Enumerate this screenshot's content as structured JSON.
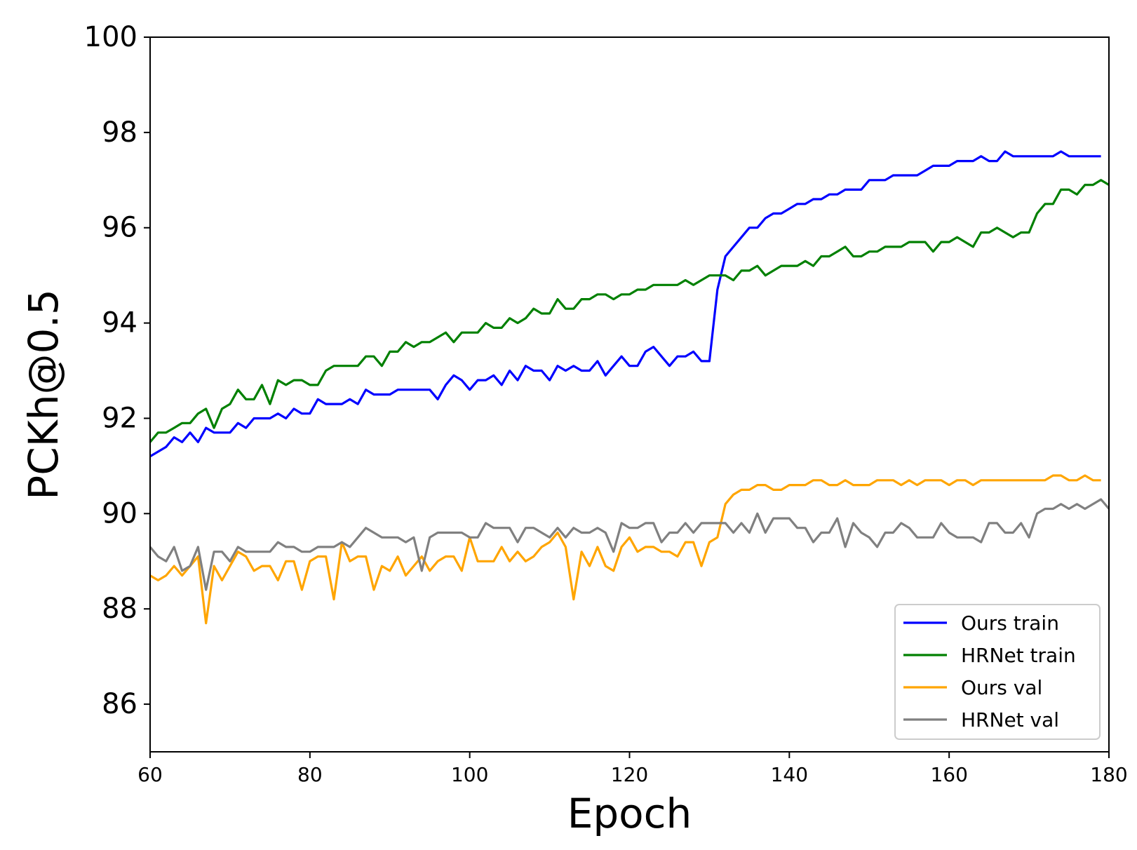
{
  "chart_data": {
    "type": "line",
    "xlabel": "Epoch",
    "ylabel": "PCKh@0.5",
    "xlim": [
      60,
      180
    ],
    "ylim": [
      85,
      100
    ],
    "xticks": [
      60,
      80,
      100,
      120,
      140,
      160,
      180
    ],
    "yticks": [
      86,
      88,
      90,
      92,
      94,
      96,
      98,
      100
    ],
    "grid": false,
    "legend_position": "lower-right",
    "x_start": 60,
    "x_step": 1,
    "series": [
      {
        "name": "Ours train",
        "color": "#0000ff",
        "values": [
          91.2,
          91.3,
          91.4,
          91.6,
          91.5,
          91.7,
          91.5,
          91.8,
          91.7,
          91.7,
          91.7,
          91.9,
          91.8,
          92.0,
          92.0,
          92.0,
          92.1,
          92.0,
          92.2,
          92.1,
          92.1,
          92.4,
          92.3,
          92.3,
          92.3,
          92.4,
          92.3,
          92.6,
          92.5,
          92.5,
          92.5,
          92.6,
          92.6,
          92.6,
          92.6,
          92.6,
          92.4,
          92.7,
          92.9,
          92.8,
          92.6,
          92.8,
          92.8,
          92.9,
          92.7,
          93.0,
          92.8,
          93.1,
          93.0,
          93.0,
          92.8,
          93.1,
          93.0,
          93.1,
          93.0,
          93.0,
          93.2,
          92.9,
          93.1,
          93.3,
          93.1,
          93.1,
          93.4,
          93.5,
          93.3,
          93.1,
          93.3,
          93.3,
          93.4,
          93.2,
          93.2,
          94.7,
          95.4,
          95.6,
          95.8,
          96.0,
          96.0,
          96.2,
          96.3,
          96.3,
          96.4,
          96.5,
          96.5,
          96.6,
          96.6,
          96.7,
          96.7,
          96.8,
          96.8,
          96.8,
          97.0,
          97.0,
          97.0,
          97.1,
          97.1,
          97.1,
          97.1,
          97.2,
          97.3,
          97.3,
          97.3,
          97.4,
          97.4,
          97.4,
          97.5,
          97.4,
          97.4,
          97.6,
          97.5,
          97.5,
          97.5,
          97.5,
          97.5,
          97.5,
          97.6,
          97.5,
          97.5,
          97.5,
          97.5,
          97.5
        ]
      },
      {
        "name": "HRNet train",
        "color": "#008000",
        "values": [
          91.5,
          91.7,
          91.7,
          91.8,
          91.9,
          91.9,
          92.1,
          92.2,
          91.8,
          92.2,
          92.3,
          92.6,
          92.4,
          92.4,
          92.7,
          92.3,
          92.8,
          92.7,
          92.8,
          92.8,
          92.7,
          92.7,
          93.0,
          93.1,
          93.1,
          93.1,
          93.1,
          93.3,
          93.3,
          93.1,
          93.4,
          93.4,
          93.6,
          93.5,
          93.6,
          93.6,
          93.7,
          93.8,
          93.6,
          93.8,
          93.8,
          93.8,
          94.0,
          93.9,
          93.9,
          94.1,
          94.0,
          94.1,
          94.3,
          94.2,
          94.2,
          94.5,
          94.3,
          94.3,
          94.5,
          94.5,
          94.6,
          94.6,
          94.5,
          94.6,
          94.6,
          94.7,
          94.7,
          94.8,
          94.8,
          94.8,
          94.8,
          94.9,
          94.8,
          94.9,
          95.0,
          95.0,
          95.0,
          94.9,
          95.1,
          95.1,
          95.2,
          95.0,
          95.1,
          95.2,
          95.2,
          95.2,
          95.3,
          95.2,
          95.4,
          95.4,
          95.5,
          95.6,
          95.4,
          95.4,
          95.5,
          95.5,
          95.6,
          95.6,
          95.6,
          95.7,
          95.7,
          95.7,
          95.5,
          95.7,
          95.7,
          95.8,
          95.7,
          95.6,
          95.9,
          95.9,
          96.0,
          95.9,
          95.8,
          95.9,
          95.9,
          96.3,
          96.5,
          96.5,
          96.8,
          96.8,
          96.7,
          96.9,
          96.9,
          97.0,
          96.9
        ]
      },
      {
        "name": "Ours val",
        "color": "#ffa500",
        "values": [
          88.7,
          88.6,
          88.7,
          88.9,
          88.7,
          88.9,
          89.1,
          87.7,
          88.9,
          88.6,
          88.9,
          89.2,
          89.1,
          88.8,
          88.9,
          88.9,
          88.6,
          89.0,
          89.0,
          88.4,
          89.0,
          89.1,
          89.1,
          88.2,
          89.4,
          89.0,
          89.1,
          89.1,
          88.4,
          88.9,
          88.8,
          89.1,
          88.7,
          88.9,
          89.1,
          88.8,
          89.0,
          89.1,
          89.1,
          88.8,
          89.5,
          89.0,
          89.0,
          89.0,
          89.3,
          89.0,
          89.2,
          89.0,
          89.1,
          89.3,
          89.4,
          89.6,
          89.3,
          88.2,
          89.2,
          88.9,
          89.3,
          88.9,
          88.8,
          89.3,
          89.5,
          89.2,
          89.3,
          89.3,
          89.2,
          89.2,
          89.1,
          89.4,
          89.4,
          88.9,
          89.4,
          89.5,
          90.2,
          90.4,
          90.5,
          90.5,
          90.6,
          90.6,
          90.5,
          90.5,
          90.6,
          90.6,
          90.6,
          90.7,
          90.7,
          90.6,
          90.6,
          90.7,
          90.6,
          90.6,
          90.6,
          90.7,
          90.7,
          90.7,
          90.6,
          90.7,
          90.6,
          90.7,
          90.7,
          90.7,
          90.6,
          90.7,
          90.7,
          90.6,
          90.7,
          90.7,
          90.7,
          90.7,
          90.7,
          90.7,
          90.7,
          90.7,
          90.7,
          90.8,
          90.8,
          90.7,
          90.7,
          90.8,
          90.7,
          90.7
        ]
      },
      {
        "name": "HRNet val",
        "color": "#808080",
        "values": [
          89.3,
          89.1,
          89.0,
          89.3,
          88.8,
          88.9,
          89.3,
          88.4,
          89.2,
          89.2,
          89.0,
          89.3,
          89.2,
          89.2,
          89.2,
          89.2,
          89.4,
          89.3,
          89.3,
          89.2,
          89.2,
          89.3,
          89.3,
          89.3,
          89.4,
          89.3,
          89.5,
          89.7,
          89.6,
          89.5,
          89.5,
          89.5,
          89.4,
          89.5,
          88.8,
          89.5,
          89.6,
          89.6,
          89.6,
          89.6,
          89.5,
          89.5,
          89.8,
          89.7,
          89.7,
          89.7,
          89.4,
          89.7,
          89.7,
          89.6,
          89.5,
          89.7,
          89.5,
          89.7,
          89.6,
          89.6,
          89.7,
          89.6,
          89.2,
          89.8,
          89.7,
          89.7,
          89.8,
          89.8,
          89.4,
          89.6,
          89.6,
          89.8,
          89.6,
          89.8,
          89.8,
          89.8,
          89.8,
          89.6,
          89.8,
          89.6,
          90.0,
          89.6,
          89.9,
          89.9,
          89.9,
          89.7,
          89.7,
          89.4,
          89.6,
          89.6,
          89.9,
          89.3,
          89.8,
          89.6,
          89.5,
          89.3,
          89.6,
          89.6,
          89.8,
          89.7,
          89.5,
          89.5,
          89.5,
          89.8,
          89.6,
          89.5,
          89.5,
          89.5,
          89.4,
          89.8,
          89.8,
          89.6,
          89.6,
          89.8,
          89.5,
          90.0,
          90.1,
          90.1,
          90.2,
          90.1,
          90.2,
          90.1,
          90.2,
          90.3,
          90.1
        ]
      }
    ]
  }
}
